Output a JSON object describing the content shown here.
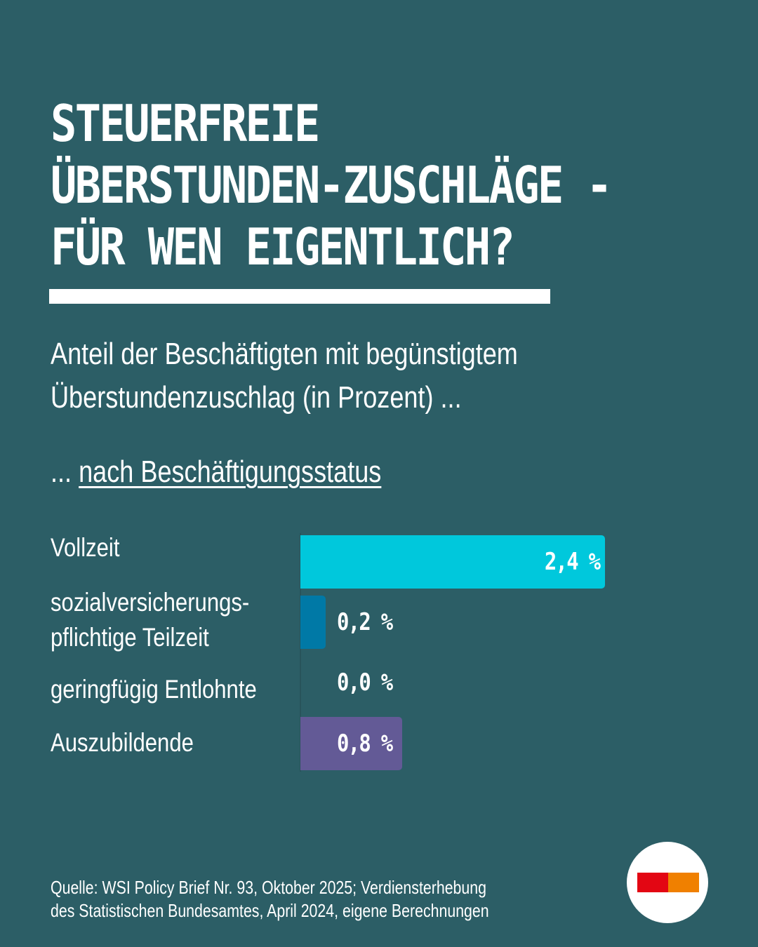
{
  "title": {
    "lines": [
      "STEUERFREIE",
      "ÜBERSTUNDEN-ZUSCHLÄGE -",
      "FÜR WEN EIGENTLICH?"
    ]
  },
  "subtitle": {
    "lines": [
      "Anteil der Beschäftigten mit begünstigtem",
      "Überstundenzuschlag (in Prozent) ..."
    ]
  },
  "section": {
    "prefix": "...",
    "link_label": "nach Beschäftigungsstatus"
  },
  "colors": {
    "background": "#2c5e66",
    "logo_red": "#e30613",
    "logo_orange": "#f08000"
  },
  "chart_data": {
    "type": "bar",
    "orientation": "horizontal",
    "title": "nach Beschäftigungsstatus",
    "unit": "%",
    "categories": [
      "Vollzeit",
      "sozialversicherungs-\npflichtige Teilzeit",
      "geringfügig Entlohnte",
      "Auszubildende"
    ],
    "category_lines": [
      [
        "Vollzeit"
      ],
      [
        "sozialversicherungs-",
        "pflichtige Teilzeit"
      ],
      [
        "geringfügig Entlohnte"
      ],
      [
        "Auszubildende"
      ]
    ],
    "values": [
      2.4,
      0.2,
      0.0,
      0.8
    ],
    "value_labels": [
      "2,4 %",
      "0,2 %",
      "0,0 %",
      "0,8 %"
    ],
    "bar_colors": [
      "#00c8dc",
      "#0079a6",
      "#2c5e66",
      "#635a96"
    ],
    "xlim": [
      0,
      2.4
    ],
    "grid": false,
    "legend": "none"
  },
  "source": {
    "lines": [
      "Quelle: WSI Policy Brief Nr. 93, Oktober 2025; Verdiensterhebung",
      "des Statistischen Bundesamtes, April 2024, eigene Berechnungen"
    ]
  }
}
